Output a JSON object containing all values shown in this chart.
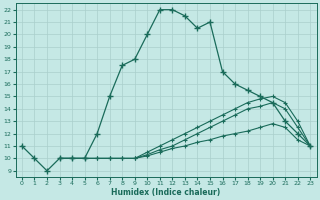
{
  "xlabel": "Humidex (Indice chaleur)",
  "background_color": "#c5e8e5",
  "line_color": "#1a6b5a",
  "grid_color": "#aacfcc",
  "xlim": [
    -0.5,
    23.5
  ],
  "ylim": [
    8.5,
    22.5
  ],
  "xticks": [
    0,
    1,
    2,
    3,
    4,
    5,
    6,
    7,
    8,
    9,
    10,
    11,
    12,
    13,
    14,
    15,
    16,
    17,
    18,
    19,
    20,
    21,
    22,
    23
  ],
  "yticks": [
    9,
    10,
    11,
    12,
    13,
    14,
    15,
    16,
    17,
    18,
    19,
    20,
    21,
    22
  ],
  "line1_x": [
    0,
    1,
    2,
    3,
    4,
    5,
    6,
    7,
    8,
    9,
    10,
    11,
    12,
    13,
    14,
    15,
    16,
    17,
    18,
    19,
    20,
    21,
    22,
    23
  ],
  "line1_y": [
    11,
    10,
    9,
    10,
    10,
    10,
    12,
    15,
    17.5,
    18,
    20,
    22,
    22,
    21.5,
    20.5,
    21,
    17,
    16,
    15.5,
    15,
    14.5,
    13,
    12,
    11
  ],
  "line2_x": [
    3,
    4,
    5,
    6,
    7,
    8,
    9,
    10,
    11,
    12,
    13,
    14,
    15,
    16,
    17,
    18,
    19,
    20,
    21,
    22,
    23
  ],
  "line2_y": [
    10,
    10,
    10,
    10,
    10,
    10,
    10,
    10.5,
    11,
    11.5,
    12,
    12.5,
    13,
    13.5,
    14,
    14.5,
    14.8,
    15,
    14.5,
    13,
    11
  ],
  "line3_x": [
    3,
    4,
    5,
    6,
    7,
    8,
    9,
    10,
    11,
    12,
    13,
    14,
    15,
    16,
    17,
    18,
    19,
    20,
    21,
    22,
    23
  ],
  "line3_y": [
    10,
    10,
    10,
    10,
    10,
    10,
    10,
    10.3,
    10.7,
    11.0,
    11.5,
    12.0,
    12.5,
    13.0,
    13.5,
    14.0,
    14.2,
    14.5,
    14.0,
    12.5,
    11
  ],
  "line4_x": [
    3,
    4,
    5,
    6,
    7,
    8,
    9,
    10,
    11,
    12,
    13,
    14,
    15,
    16,
    17,
    18,
    19,
    20,
    21,
    22,
    23
  ],
  "line4_y": [
    10,
    10,
    10,
    10,
    10,
    10,
    10,
    10.2,
    10.5,
    10.8,
    11.0,
    11.3,
    11.5,
    11.8,
    12.0,
    12.2,
    12.5,
    12.8,
    12.5,
    11.5,
    11
  ]
}
